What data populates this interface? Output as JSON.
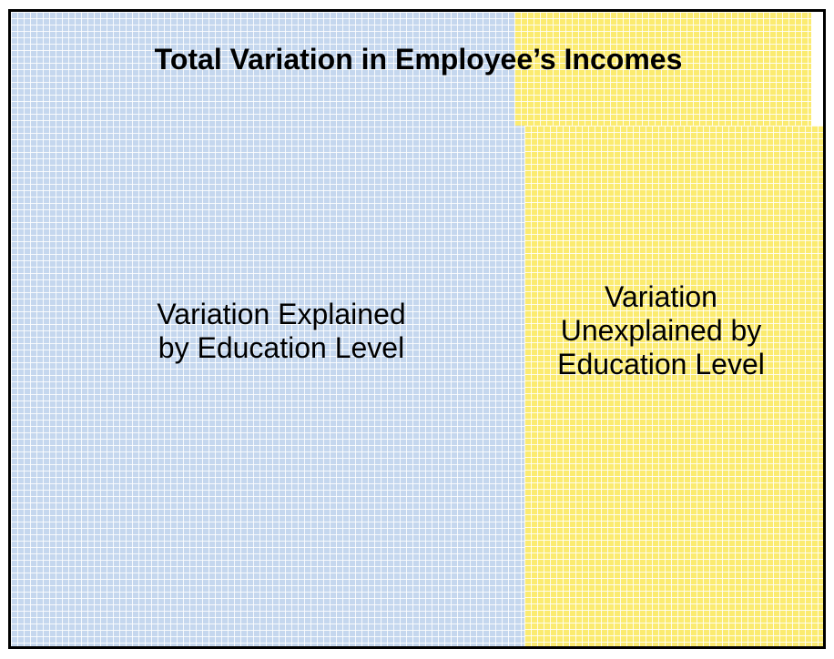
{
  "title": "Total Variation in Employee’s Incomes",
  "regions": {
    "explained": {
      "line1": "Variation Explained",
      "line2": "by Education Level",
      "color": "#c5d7ee"
    },
    "unexplained": {
      "line1": "Variation",
      "line2": "Unexplained by",
      "line3": "Education Level",
      "color": "#fbeb70"
    }
  },
  "border_color": "#000000"
}
